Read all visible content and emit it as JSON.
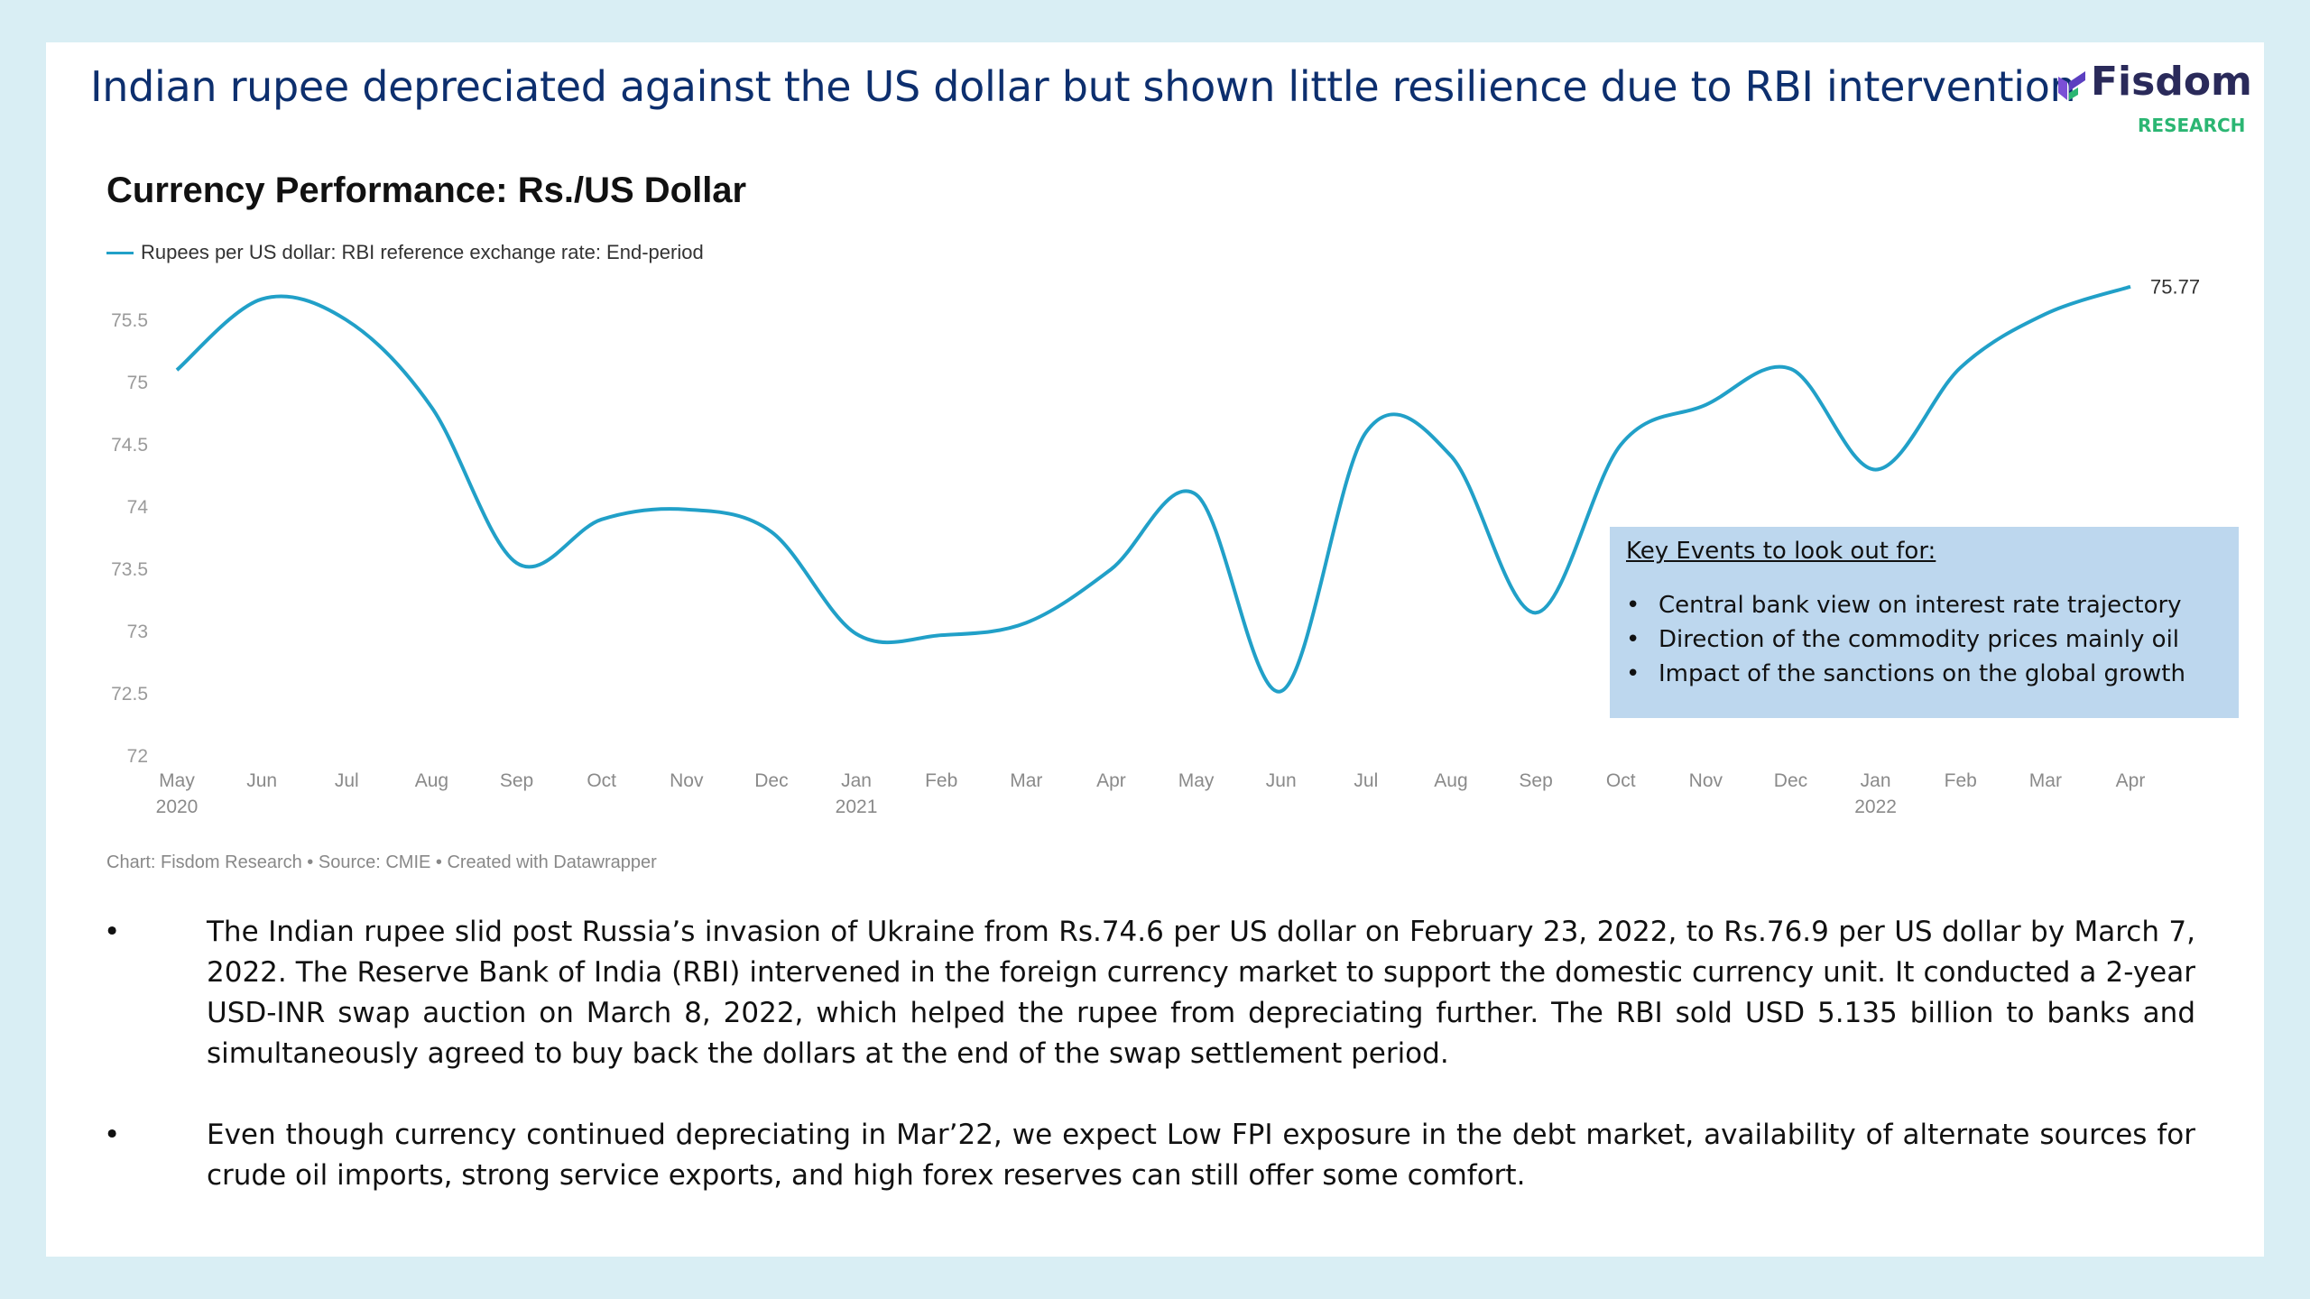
{
  "headline": "Indian rupee depreciated  against the US dollar but shown little resilience due to RBI intervention",
  "logo": {
    "name": "Fisdom",
    "sub": "RESEARCH",
    "icon": "fisdom-leaf-icon"
  },
  "chart_data": {
    "type": "line",
    "title": "Currency Performance: Rs./US Dollar",
    "xlabel": "",
    "ylabel": "",
    "ylim": [
      72,
      75.7
    ],
    "yticks": [
      "72",
      "72.5",
      "73",
      "73.5",
      "74",
      "74.5",
      "75",
      "75.5"
    ],
    "xticks": [
      {
        "label": "May",
        "sub": "2020"
      },
      {
        "label": "Jun",
        "sub": ""
      },
      {
        "label": "Jul",
        "sub": ""
      },
      {
        "label": "Aug",
        "sub": ""
      },
      {
        "label": "Sep",
        "sub": ""
      },
      {
        "label": "Oct",
        "sub": ""
      },
      {
        "label": "Nov",
        "sub": ""
      },
      {
        "label": "Dec",
        "sub": ""
      },
      {
        "label": "Jan",
        "sub": "2021"
      },
      {
        "label": "Feb",
        "sub": ""
      },
      {
        "label": "Mar",
        "sub": ""
      },
      {
        "label": "Apr",
        "sub": ""
      },
      {
        "label": "May",
        "sub": ""
      },
      {
        "label": "Jun",
        "sub": ""
      },
      {
        "label": "Jul",
        "sub": ""
      },
      {
        "label": "Aug",
        "sub": ""
      },
      {
        "label": "Sep",
        "sub": ""
      },
      {
        "label": "Oct",
        "sub": ""
      },
      {
        "label": "Nov",
        "sub": ""
      },
      {
        "label": "Dec",
        "sub": ""
      },
      {
        "label": "Jan",
        "sub": "2022"
      },
      {
        "label": "Feb",
        "sub": ""
      },
      {
        "label": "Mar",
        "sub": ""
      },
      {
        "label": "Apr",
        "sub": ""
      }
    ],
    "series": [
      {
        "name": "Rupees per US dollar: RBI reference exchange rate: End-period",
        "color": "#21a0c8",
        "x": [
          "2020-05",
          "2020-06",
          "2020-07",
          "2020-08",
          "2020-09",
          "2020-10",
          "2020-11",
          "2020-12",
          "2021-01",
          "2021-02",
          "2021-03",
          "2021-04",
          "2021-05",
          "2021-06",
          "2021-07",
          "2021-08",
          "2021-09",
          "2021-10",
          "2021-11",
          "2021-12",
          "2022-01",
          "2022-02",
          "2022-03",
          "2022-04"
        ],
        "values": [
          75.1,
          75.67,
          75.5,
          74.8,
          73.55,
          73.9,
          73.98,
          73.8,
          72.98,
          72.97,
          73.07,
          73.5,
          74.1,
          72.52,
          74.6,
          74.41,
          73.15,
          74.5,
          74.82,
          75.11,
          74.3,
          75.12,
          75.55,
          75.77
        ]
      }
    ],
    "end_label": "75.77",
    "grid": false,
    "legend": "top-left",
    "source": "Chart: Fisdom Research • Source: CMIE • Created with Datawrapper"
  },
  "key_events": {
    "title": "Key Events to look out for:",
    "items": [
      "Central bank view on interest rate trajectory",
      "Direction of the commodity prices mainly oil",
      "Impact of the sanctions on the global growth"
    ]
  },
  "notes": [
    "The Indian rupee slid post Russia’s invasion of Ukraine from Rs.74.6 per US dollar on February 23, 2022, to Rs.76.9 per US dollar by March 7, 2022. The Reserve Bank of India (RBI) intervened in the foreign currency market to support the domestic currency unit. It conducted a 2-year USD-INR swap auction on March 8, 2022, which helped the rupee from depreciating further. The RBI sold USD 5.135 billion to banks and simultaneously agreed to buy back the dollars at the end of the swap settlement period.",
    "Even though currency continued depreciating in Mar’22, we expect Low FPI exposure in the debt market, availability of alternate sources for crude oil imports, strong service exports, and high forex reserves can still offer some comfort."
  ],
  "bullet": "•"
}
